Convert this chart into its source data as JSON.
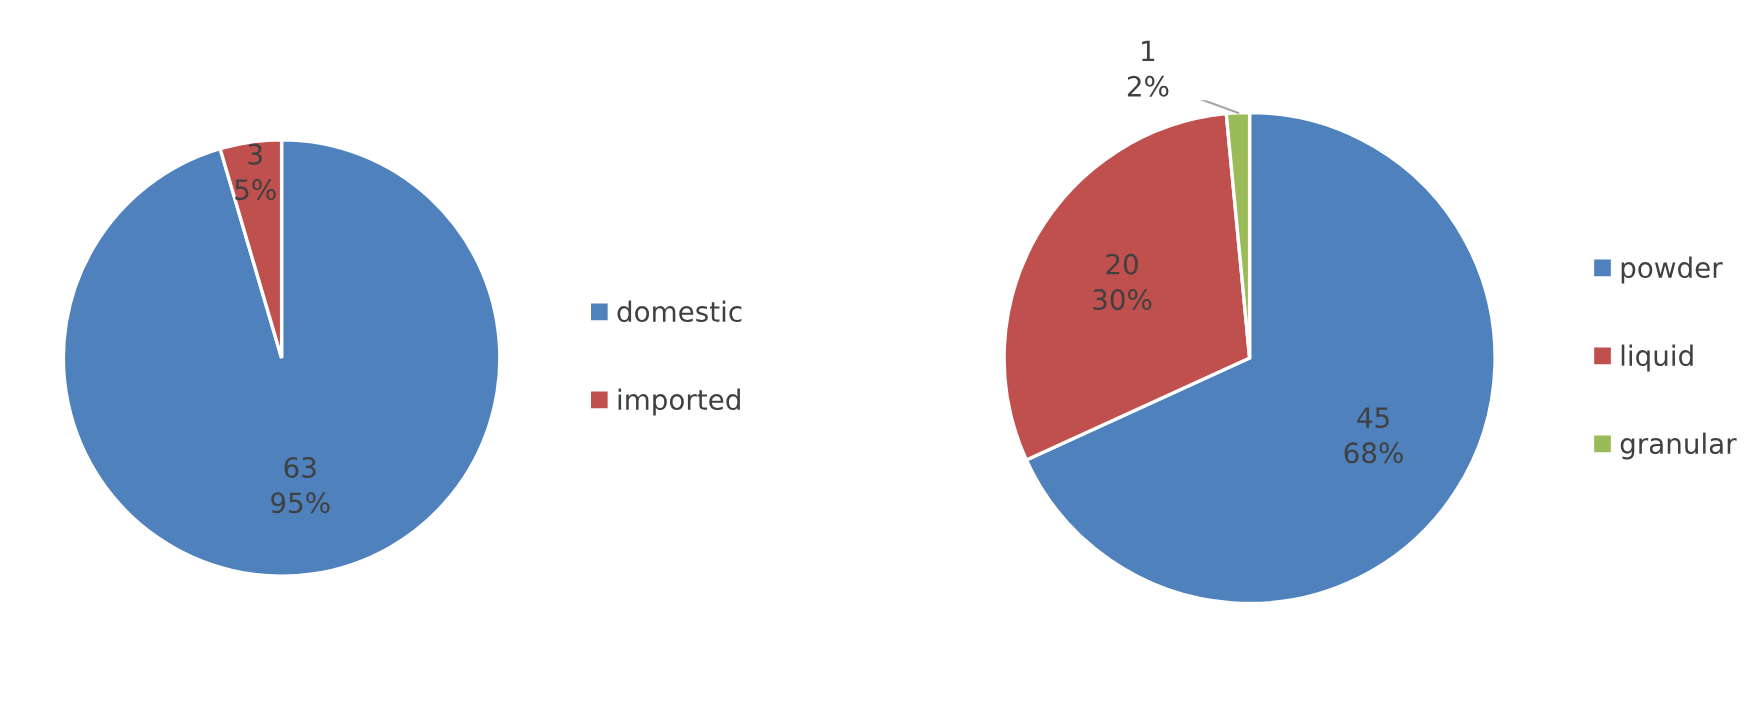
{
  "chart_data": [
    {
      "type": "pie",
      "categories": [
        "domestic",
        "imported"
      ],
      "values": [
        63,
        3
      ],
      "colors": [
        "#4f81bd",
        "#c0504d"
      ],
      "value_labels": [
        "63\n95%",
        "3\n5%"
      ],
      "legend": "right"
    },
    {
      "type": "pie",
      "categories": [
        "powder",
        "liquid",
        "granular"
      ],
      "values": [
        45,
        20,
        1
      ],
      "colors": [
        "#4f81bd",
        "#c0504d",
        "#9bbb59"
      ],
      "value_labels": [
        "45\n68%",
        "20\n30%",
        "1\n2%"
      ],
      "legend": "right"
    }
  ]
}
